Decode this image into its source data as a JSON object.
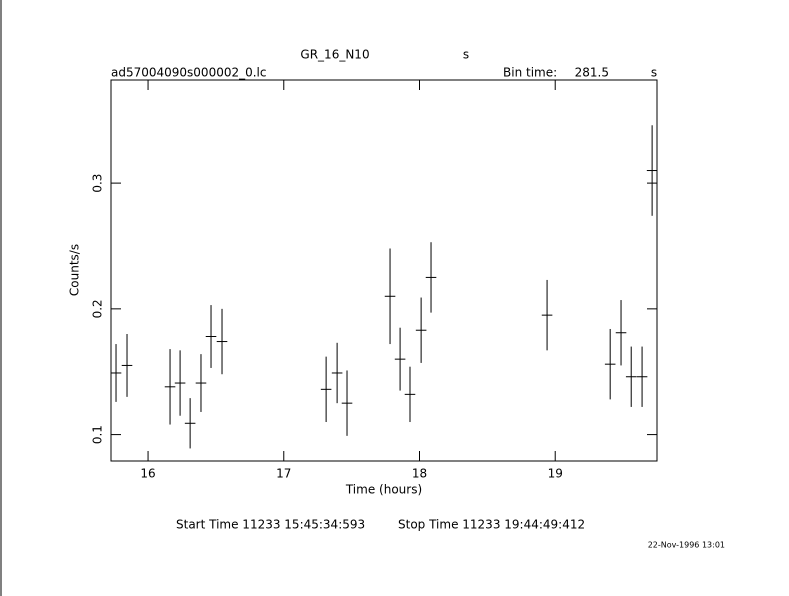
{
  "chart_data": {
    "type": "errorbar",
    "title": "GR_16_N10",
    "title_unit": "s",
    "subtitle": "ad57004090s000002_0.lc",
    "bin_time_label": "Bin time:",
    "bin_time": 281.5,
    "bin_time_unit": "s",
    "x_label": "Time (hours)",
    "y_label": "Counts/s",
    "start_time": "Start Time 11233 15:45:34:593",
    "stop_time": "Stop Time 11233 19:44:49:412",
    "date": "22-Nov-1996 13:01",
    "xlim": [
      15.727,
      19.75
    ],
    "ylim": [
      0.079,
      0.382
    ],
    "xticks": [
      16,
      17,
      18,
      19
    ],
    "yticks": [
      0.1,
      0.2,
      0.3
    ],
    "series": [
      {
        "color": "#000000",
        "x": [
          15.764,
          15.845,
          16.162,
          16.236,
          16.31,
          16.39,
          16.464,
          16.545,
          17.312,
          17.393,
          17.466,
          17.783,
          17.857,
          17.93,
          18.012,
          18.085,
          18.94,
          19.405,
          19.485,
          19.56,
          19.64,
          19.714
        ],
        "values": [
          0.149,
          0.155,
          0.138,
          0.141,
          0.109,
          0.141,
          0.178,
          0.174,
          0.136,
          0.149,
          0.125,
          0.21,
          0.16,
          0.132,
          0.183,
          0.225,
          0.195,
          0.156,
          0.181,
          0.146,
          0.146,
          0.31
        ],
        "yerr": [
          0.023,
          0.025,
          0.03,
          0.026,
          0.02,
          0.023,
          0.025,
          0.026,
          0.026,
          0.024,
          0.026,
          0.038,
          0.025,
          0.022,
          0.026,
          0.028,
          0.028,
          0.028,
          0.026,
          0.024,
          0.024,
          0.036
        ],
        "xerr": [
          0.039,
          0.039,
          0.039,
          0.039,
          0.039,
          0.039,
          0.039,
          0.039,
          0.039,
          0.039,
          0.039,
          0.039,
          0.039,
          0.039,
          0.039,
          0.039,
          0.039,
          0.039,
          0.039,
          0.039,
          0.039,
          0.039
        ]
      }
    ]
  }
}
